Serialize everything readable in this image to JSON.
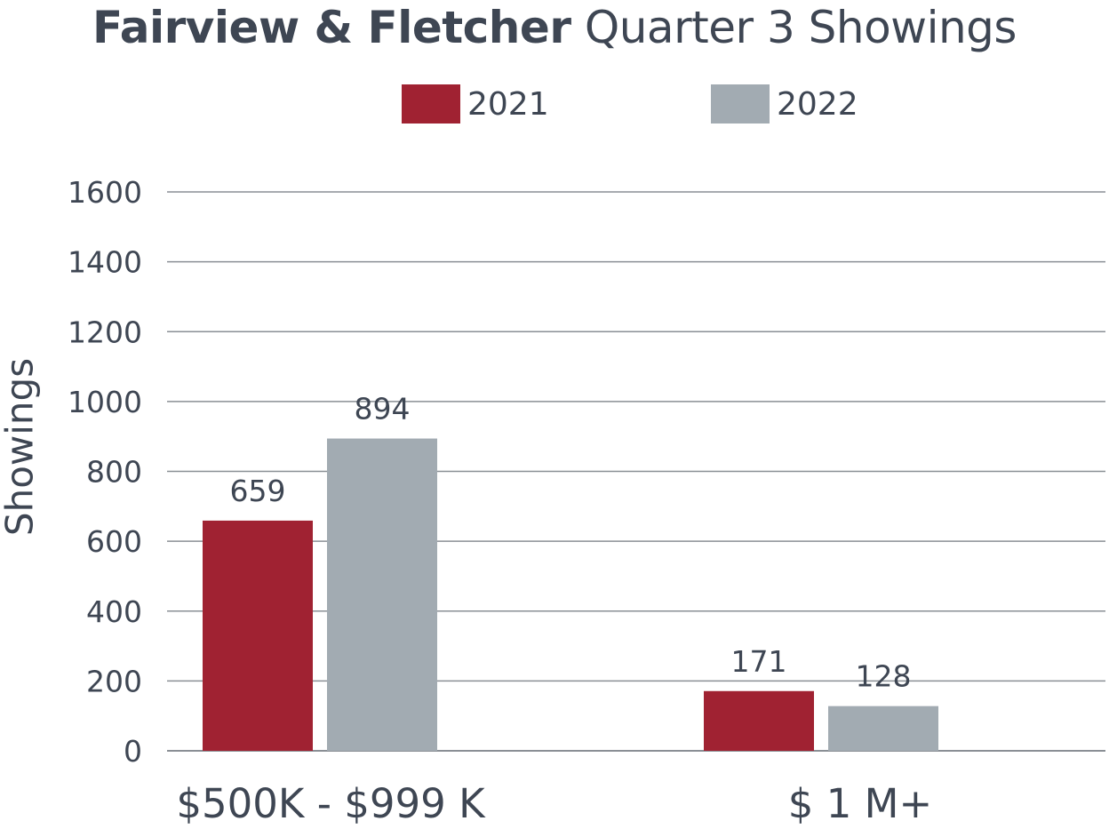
{
  "chart_data": {
    "type": "bar",
    "title_bold": "Fairview & Fletcher",
    "title_rest": "Quarter 3 Showings",
    "ylabel": "Showings",
    "xlabel": "",
    "categories": [
      "$500K - $999 K",
      "$ 1 M+"
    ],
    "series": [
      {
        "name": "2021",
        "values": [
          659,
          171
        ],
        "color": "#a02232",
        "labels": [
          "659",
          "171"
        ]
      },
      {
        "name": "2022",
        "values": [
          894,
          128
        ],
        "color": "#a2abb2",
        "labels": [
          "894",
          "128"
        ]
      }
    ],
    "yticks": [
      0,
      200,
      400,
      600,
      800,
      1000,
      1200,
      1400,
      1600
    ],
    "ytick_labels": [
      "0",
      "200",
      "400",
      "600",
      "800",
      "1000",
      "1200",
      "1400",
      "1600"
    ],
    "ylim": [
      0,
      1600
    ],
    "grid": true,
    "legend": "top-center"
  }
}
